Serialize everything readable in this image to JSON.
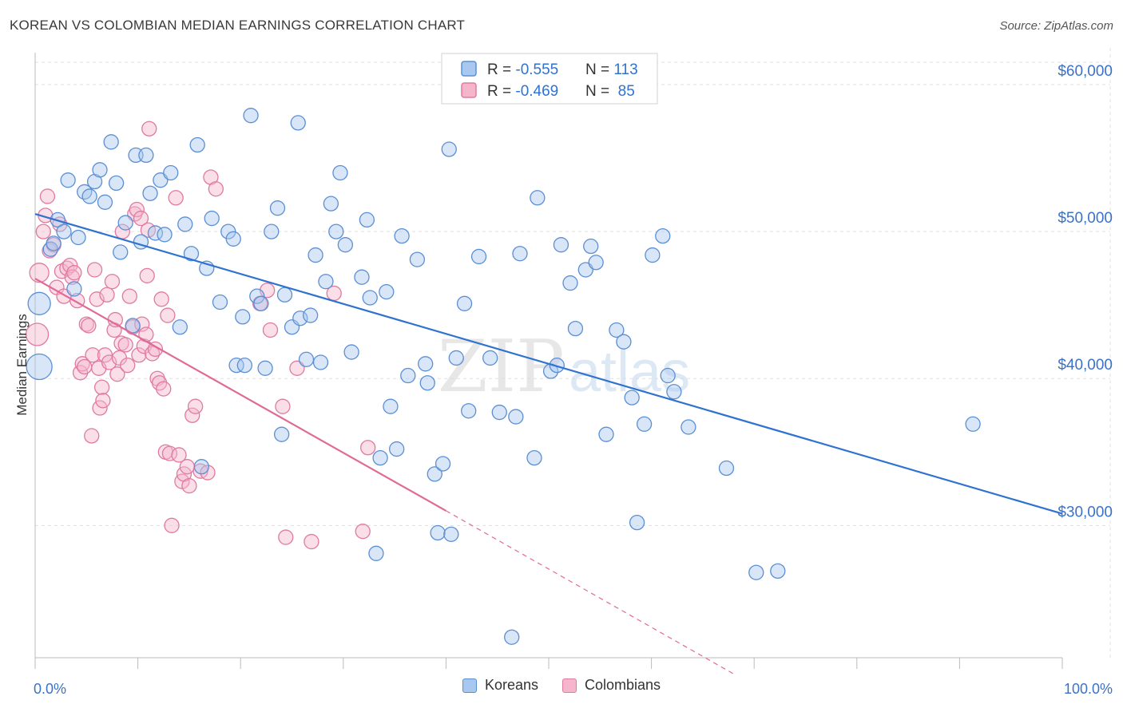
{
  "title": "KOREAN VS COLOMBIAN MEDIAN EARNINGS CORRELATION CHART",
  "source": "Source: ZipAtlas.com",
  "watermark": {
    "zip": "ZIP",
    "atlas": "atlas"
  },
  "colors": {
    "korean_fill": "#a8c8f0",
    "korean_stroke": "#5b8fd4",
    "korean_line": "#2f72d0",
    "colombian_fill": "#f5b6cb",
    "colombian_stroke": "#e07aa0",
    "colombian_line": "#e06a96",
    "axis_text": "#3a72c8",
    "grid": "#e0e0e0"
  },
  "legend": [
    {
      "r_label": "R = ",
      "r_value": "-0.555",
      "n_label": "N = ",
      "n_value": "113"
    },
    {
      "r_label": "R = ",
      "r_value": "-0.469",
      "n_label": "N = ",
      "n_value": " 85"
    }
  ],
  "bottom_legend": [
    "Koreans",
    "Colombians"
  ],
  "chart_data": {
    "type": "scatter",
    "ylabel": "Median Earnings",
    "xlabel": "",
    "xlim": [
      0,
      100
    ],
    "ylim": [
      21000,
      62500
    ],
    "x_tick_labels": [
      "0.0%",
      "100.0%"
    ],
    "y_ticks": [
      30000,
      40000,
      50000,
      60000
    ],
    "y_tick_labels": [
      "$30,000",
      "$40,000",
      "$50,000",
      "$60,000"
    ],
    "legend_position": "top-center",
    "grid": true,
    "series": [
      {
        "name": "Koreans",
        "trend": {
          "x": [
            0,
            100
          ],
          "y": [
            51200,
            30800
          ]
        },
        "points": [
          [
            0.4,
            45100
          ],
          [
            0.4,
            40800
          ],
          [
            1.5,
            48800
          ],
          [
            1.8,
            49200
          ],
          [
            2.2,
            50800
          ],
          [
            2.8,
            50000
          ],
          [
            3.2,
            53500
          ],
          [
            3.8,
            46100
          ],
          [
            4.2,
            49600
          ],
          [
            4.8,
            52700
          ],
          [
            5.3,
            52400
          ],
          [
            5.8,
            53400
          ],
          [
            6.3,
            54200
          ],
          [
            6.8,
            52000
          ],
          [
            7.4,
            56100
          ],
          [
            7.9,
            53300
          ],
          [
            8.3,
            48600
          ],
          [
            8.8,
            50600
          ],
          [
            9.5,
            43600
          ],
          [
            9.8,
            55200
          ],
          [
            10.3,
            49300
          ],
          [
            10.8,
            55200
          ],
          [
            11.2,
            52600
          ],
          [
            11.7,
            49900
          ],
          [
            12.2,
            53500
          ],
          [
            12.6,
            49800
          ],
          [
            13.2,
            54000
          ],
          [
            14.1,
            43500
          ],
          [
            14.6,
            50500
          ],
          [
            15.2,
            48500
          ],
          [
            15.8,
            55900
          ],
          [
            16.2,
            34000
          ],
          [
            16.7,
            47500
          ],
          [
            17.2,
            50900
          ],
          [
            18.0,
            45200
          ],
          [
            18.8,
            50000
          ],
          [
            19.3,
            49500
          ],
          [
            19.6,
            40900
          ],
          [
            20.2,
            44200
          ],
          [
            21.0,
            57900
          ],
          [
            21.6,
            45600
          ],
          [
            22.0,
            45100
          ],
          [
            22.4,
            40700
          ],
          [
            23.0,
            50000
          ],
          [
            23.6,
            51600
          ],
          [
            24.0,
            36200
          ],
          [
            24.3,
            45700
          ],
          [
            25.0,
            43500
          ],
          [
            25.6,
            57400
          ],
          [
            25.8,
            44100
          ],
          [
            26.4,
            41300
          ],
          [
            26.8,
            44300
          ],
          [
            27.3,
            48400
          ],
          [
            27.8,
            41100
          ],
          [
            28.3,
            46600
          ],
          [
            28.8,
            51900
          ],
          [
            29.3,
            50000
          ],
          [
            29.7,
            54000
          ],
          [
            30.2,
            49100
          ],
          [
            30.8,
            41800
          ],
          [
            31.8,
            46900
          ],
          [
            32.3,
            50800
          ],
          [
            32.6,
            45500
          ],
          [
            33.2,
            28100
          ],
          [
            33.6,
            34600
          ],
          [
            34.2,
            45900
          ],
          [
            34.6,
            38100
          ],
          [
            35.2,
            35200
          ],
          [
            35.7,
            49700
          ],
          [
            36.3,
            40200
          ],
          [
            37.2,
            48100
          ],
          [
            38.0,
            41000
          ],
          [
            38.2,
            39700
          ],
          [
            38.9,
            33500
          ],
          [
            39.2,
            29500
          ],
          [
            39.7,
            34200
          ],
          [
            40.3,
            55600
          ],
          [
            41.0,
            41400
          ],
          [
            41.8,
            45100
          ],
          [
            42.2,
            37800
          ],
          [
            43.2,
            48300
          ],
          [
            44.3,
            41400
          ],
          [
            45.2,
            37700
          ],
          [
            46.4,
            22400
          ],
          [
            46.8,
            37400
          ],
          [
            47.2,
            48500
          ],
          [
            48.6,
            34600
          ],
          [
            48.9,
            52300
          ],
          [
            50.2,
            40500
          ],
          [
            50.8,
            40900
          ],
          [
            51.2,
            49100
          ],
          [
            52.1,
            46500
          ],
          [
            52.6,
            43400
          ],
          [
            53.6,
            47400
          ],
          [
            54.1,
            49000
          ],
          [
            54.6,
            47900
          ],
          [
            55.6,
            36200
          ],
          [
            56.6,
            43300
          ],
          [
            57.3,
            42500
          ],
          [
            58.1,
            38700
          ],
          [
            58.6,
            30200
          ],
          [
            59.3,
            36900
          ],
          [
            60.1,
            48400
          ],
          [
            61.1,
            49700
          ],
          [
            61.6,
            40200
          ],
          [
            62.2,
            39100
          ],
          [
            63.6,
            36700
          ],
          [
            67.3,
            33900
          ],
          [
            70.2,
            26800
          ],
          [
            72.3,
            26900
          ],
          [
            91.3,
            36900
          ],
          [
            40.5,
            29400
          ],
          [
            20.4,
            40900
          ]
        ],
        "sizes": {
          "0": 28,
          "1": 32
        }
      },
      {
        "name": "Colombians",
        "trend": {
          "x": [
            0,
            40.0
          ],
          "y": [
            46800,
            31000
          ]
        },
        "trend_dashed": {
          "x": [
            40.0,
            68.0
          ],
          "y": [
            31000,
            19900
          ]
        },
        "points": [
          [
            0.2,
            43000
          ],
          [
            0.4,
            47200
          ],
          [
            0.8,
            50000
          ],
          [
            1.0,
            51100
          ],
          [
            1.2,
            52400
          ],
          [
            1.4,
            48700
          ],
          [
            1.8,
            49100
          ],
          [
            2.1,
            46200
          ],
          [
            2.4,
            50500
          ],
          [
            2.6,
            47300
          ],
          [
            2.8,
            45600
          ],
          [
            3.1,
            47500
          ],
          [
            3.4,
            47700
          ],
          [
            3.6,
            46900
          ],
          [
            3.8,
            47200
          ],
          [
            4.1,
            45300
          ],
          [
            4.4,
            40400
          ],
          [
            4.6,
            41000
          ],
          [
            4.8,
            40800
          ],
          [
            5.0,
            43700
          ],
          [
            5.2,
            43600
          ],
          [
            5.5,
            36100
          ],
          [
            5.6,
            41600
          ],
          [
            5.8,
            47400
          ],
          [
            6.0,
            45400
          ],
          [
            6.2,
            40700
          ],
          [
            6.3,
            38000
          ],
          [
            6.5,
            39400
          ],
          [
            6.6,
            38500
          ],
          [
            6.8,
            41600
          ],
          [
            7.0,
            45700
          ],
          [
            7.2,
            41100
          ],
          [
            7.5,
            46600
          ],
          [
            7.7,
            43300
          ],
          [
            7.8,
            44000
          ],
          [
            8.0,
            40300
          ],
          [
            8.2,
            41400
          ],
          [
            8.4,
            42400
          ],
          [
            8.5,
            50000
          ],
          [
            8.8,
            42300
          ],
          [
            9.0,
            40900
          ],
          [
            9.2,
            45600
          ],
          [
            9.5,
            43500
          ],
          [
            9.7,
            51200
          ],
          [
            9.9,
            51500
          ],
          [
            10.1,
            41600
          ],
          [
            10.3,
            50900
          ],
          [
            10.4,
            43700
          ],
          [
            10.6,
            42200
          ],
          [
            10.8,
            43000
          ],
          [
            10.9,
            47000
          ],
          [
            11.1,
            57000
          ],
          [
            11.4,
            41700
          ],
          [
            11.7,
            42000
          ],
          [
            11.9,
            40000
          ],
          [
            12.1,
            39700
          ],
          [
            12.3,
            45400
          ],
          [
            12.5,
            39300
          ],
          [
            12.7,
            35000
          ],
          [
            12.9,
            44300
          ],
          [
            13.1,
            34900
          ],
          [
            13.3,
            30000
          ],
          [
            13.7,
            52300
          ],
          [
            14.0,
            34800
          ],
          [
            14.3,
            33000
          ],
          [
            14.5,
            33500
          ],
          [
            14.8,
            34000
          ],
          [
            15.0,
            32700
          ],
          [
            15.3,
            37500
          ],
          [
            15.6,
            38100
          ],
          [
            16.1,
            33700
          ],
          [
            17.1,
            53700
          ],
          [
            17.6,
            52900
          ],
          [
            21.9,
            45100
          ],
          [
            22.6,
            46000
          ],
          [
            22.9,
            43300
          ],
          [
            24.1,
            38100
          ],
          [
            24.4,
            29200
          ],
          [
            25.5,
            40700
          ],
          [
            26.9,
            28900
          ],
          [
            29.1,
            45800
          ],
          [
            31.9,
            29600
          ],
          [
            32.4,
            35300
          ],
          [
            16.8,
            33600
          ],
          [
            11.0,
            50100
          ]
        ],
        "sizes": {
          "0": 28,
          "1": 24
        }
      }
    ]
  }
}
